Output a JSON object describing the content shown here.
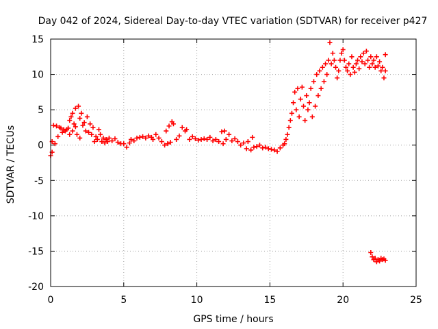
{
  "chart_data": {
    "type": "scatter",
    "title": "Day 042 of 2024, Sidereal Day-to-day VTEC variation (SDTVAR) for receiver p427",
    "xlabel": "GPS time / hours",
    "ylabel": "SDTVAR / TECUs",
    "xlim": [
      0,
      25
    ],
    "ylim": [
      -20,
      15
    ],
    "xticks": [
      0,
      5,
      10,
      15,
      20,
      25
    ],
    "yticks": [
      -20,
      -15,
      -10,
      -5,
      0,
      5,
      10,
      15
    ],
    "grid": true,
    "marker": "+",
    "color": "#ff0000",
    "series": [
      {
        "name": "p427 SDTVAR",
        "points": [
          [
            0.0,
            -1.5
          ],
          [
            0.1,
            -1.0
          ],
          [
            0.1,
            0.5
          ],
          [
            0.2,
            2.8
          ],
          [
            0.3,
            0.2
          ],
          [
            0.4,
            2.7
          ],
          [
            0.5,
            1.2
          ],
          [
            0.6,
            2.5
          ],
          [
            0.7,
            2.4
          ],
          [
            0.8,
            1.8
          ],
          [
            0.9,
            2.2
          ],
          [
            1.0,
            2.0
          ],
          [
            1.1,
            2.2
          ],
          [
            1.2,
            2.4
          ],
          [
            1.3,
            1.5
          ],
          [
            1.3,
            3.5
          ],
          [
            1.4,
            4.0
          ],
          [
            1.5,
            2.0
          ],
          [
            1.5,
            4.5
          ],
          [
            1.6,
            3.0
          ],
          [
            1.7,
            5.2
          ],
          [
            1.7,
            2.6
          ],
          [
            1.8,
            1.5
          ],
          [
            1.9,
            5.5
          ],
          [
            2.0,
            3.8
          ],
          [
            2.0,
            1.0
          ],
          [
            2.1,
            4.5
          ],
          [
            2.2,
            2.8
          ],
          [
            2.3,
            3.2
          ],
          [
            2.4,
            2.0
          ],
          [
            2.5,
            4.0
          ],
          [
            2.6,
            1.8
          ],
          [
            2.7,
            3.0
          ],
          [
            2.8,
            1.5
          ],
          [
            2.9,
            2.5
          ],
          [
            3.0,
            0.5
          ],
          [
            3.1,
            1.2
          ],
          [
            3.2,
            0.8
          ],
          [
            3.3,
            2.2
          ],
          [
            3.4,
            1.5
          ],
          [
            3.5,
            0.5
          ],
          [
            3.6,
            1.0
          ],
          [
            3.7,
            0.3
          ],
          [
            3.8,
            0.8
          ],
          [
            3.9,
            0.5
          ],
          [
            4.0,
            1.0
          ],
          [
            4.2,
            0.6
          ],
          [
            4.4,
            0.9
          ],
          [
            4.6,
            0.4
          ],
          [
            4.8,
            0.2
          ],
          [
            5.0,
            0.2
          ],
          [
            5.2,
            -0.3
          ],
          [
            5.4,
            0.3
          ],
          [
            5.5,
            0.8
          ],
          [
            5.7,
            0.6
          ],
          [
            5.9,
            1.0
          ],
          [
            6.1,
            1.1
          ],
          [
            6.3,
            1.2
          ],
          [
            6.5,
            1.0
          ],
          [
            6.7,
            1.3
          ],
          [
            6.9,
            1.1
          ],
          [
            7.0,
            0.8
          ],
          [
            7.2,
            1.5
          ],
          [
            7.4,
            1.0
          ],
          [
            7.6,
            0.5
          ],
          [
            7.8,
            0.0
          ],
          [
            7.9,
            2.0
          ],
          [
            8.0,
            0.2
          ],
          [
            8.1,
            2.7
          ],
          [
            8.2,
            0.4
          ],
          [
            8.3,
            3.3
          ],
          [
            8.4,
            3.0
          ],
          [
            8.6,
            0.8
          ],
          [
            8.8,
            1.3
          ],
          [
            9.0,
            2.5
          ],
          [
            9.2,
            2.0
          ],
          [
            9.3,
            2.2
          ],
          [
            9.5,
            0.8
          ],
          [
            9.7,
            1.2
          ],
          [
            9.9,
            0.9
          ],
          [
            10.1,
            0.7
          ],
          [
            10.3,
            0.8
          ],
          [
            10.5,
            0.9
          ],
          [
            10.7,
            0.8
          ],
          [
            10.9,
            1.1
          ],
          [
            11.1,
            0.6
          ],
          [
            11.3,
            0.8
          ],
          [
            11.5,
            0.5
          ],
          [
            11.7,
            1.9
          ],
          [
            11.8,
            0.2
          ],
          [
            11.9,
            2.0
          ],
          [
            12.0,
            0.8
          ],
          [
            12.2,
            1.5
          ],
          [
            12.4,
            0.6
          ],
          [
            12.6,
            0.9
          ],
          [
            12.8,
            0.5
          ],
          [
            13.0,
            0.0
          ],
          [
            13.2,
            0.3
          ],
          [
            13.4,
            -0.5
          ],
          [
            13.5,
            0.5
          ],
          [
            13.7,
            -0.7
          ],
          [
            13.8,
            1.1
          ],
          [
            13.9,
            -0.3
          ],
          [
            14.1,
            -0.2
          ],
          [
            14.3,
            0.0
          ],
          [
            14.5,
            -0.4
          ],
          [
            14.7,
            -0.3
          ],
          [
            14.9,
            -0.5
          ],
          [
            15.1,
            -0.6
          ],
          [
            15.3,
            -0.7
          ],
          [
            15.5,
            -0.9
          ],
          [
            15.7,
            -0.4
          ],
          [
            15.9,
            0.0
          ],
          [
            16.0,
            0.2
          ],
          [
            16.1,
            0.8
          ],
          [
            16.2,
            1.5
          ],
          [
            16.3,
            2.5
          ],
          [
            16.4,
            3.5
          ],
          [
            16.5,
            4.5
          ],
          [
            16.6,
            6.0
          ],
          [
            16.7,
            7.5
          ],
          [
            16.8,
            5.0
          ],
          [
            16.9,
            8.0
          ],
          [
            17.0,
            4.0
          ],
          [
            17.1,
            6.5
          ],
          [
            17.2,
            8.2
          ],
          [
            17.3,
            5.5
          ],
          [
            17.4,
            3.5
          ],
          [
            17.5,
            7.0
          ],
          [
            17.6,
            5.0
          ],
          [
            17.7,
            6.0
          ],
          [
            17.8,
            8.0
          ],
          [
            17.9,
            4.0
          ],
          [
            18.0,
            9.0
          ],
          [
            18.1,
            5.5
          ],
          [
            18.2,
            10.0
          ],
          [
            18.3,
            7.0
          ],
          [
            18.4,
            10.5
          ],
          [
            18.5,
            8.0
          ],
          [
            18.6,
            11.0
          ],
          [
            18.7,
            9.0
          ],
          [
            18.8,
            11.5
          ],
          [
            18.9,
            10.0
          ],
          [
            19.0,
            12.0
          ],
          [
            19.1,
            14.5
          ],
          [
            19.2,
            11.5
          ],
          [
            19.3,
            13.0
          ],
          [
            19.4,
            12.0
          ],
          [
            19.5,
            11.0
          ],
          [
            19.6,
            9.5
          ],
          [
            19.7,
            10.5
          ],
          [
            19.8,
            12.0
          ],
          [
            19.9,
            13.0
          ],
          [
            20.0,
            13.5
          ],
          [
            20.1,
            12.0
          ],
          [
            20.2,
            11.0
          ],
          [
            20.3,
            10.5
          ],
          [
            20.4,
            11.5
          ],
          [
            20.5,
            10.0
          ],
          [
            20.6,
            12.5
          ],
          [
            20.7,
            11.0
          ],
          [
            20.8,
            10.3
          ],
          [
            20.9,
            11.5
          ],
          [
            21.0,
            12.0
          ],
          [
            21.1,
            10.8
          ],
          [
            21.2,
            12.5
          ],
          [
            21.3,
            11.8
          ],
          [
            21.4,
            13.0
          ],
          [
            21.5,
            11.5
          ],
          [
            21.6,
            13.3
          ],
          [
            21.7,
            12.0
          ],
          [
            21.8,
            11.0
          ],
          [
            21.9,
            12.5
          ],
          [
            22.0,
            11.5
          ],
          [
            22.1,
            12.0
          ],
          [
            22.2,
            11.0
          ],
          [
            22.3,
            12.5
          ],
          [
            22.4,
            11.2
          ],
          [
            22.5,
            11.8
          ],
          [
            22.6,
            10.5
          ],
          [
            22.7,
            11.0
          ],
          [
            22.8,
            9.5
          ],
          [
            22.9,
            10.5
          ],
          [
            22.9,
            12.8
          ],
          [
            21.9,
            -15.2
          ],
          [
            22.0,
            -15.8
          ],
          [
            22.1,
            -16.2
          ],
          [
            22.2,
            -16.0
          ],
          [
            22.3,
            -16.5
          ],
          [
            22.4,
            -16.2
          ],
          [
            22.5,
            -16.4
          ],
          [
            22.6,
            -16.0
          ],
          [
            22.7,
            -16.2
          ],
          [
            22.8,
            -16.1
          ],
          [
            22.9,
            -16.3
          ]
        ]
      }
    ]
  }
}
